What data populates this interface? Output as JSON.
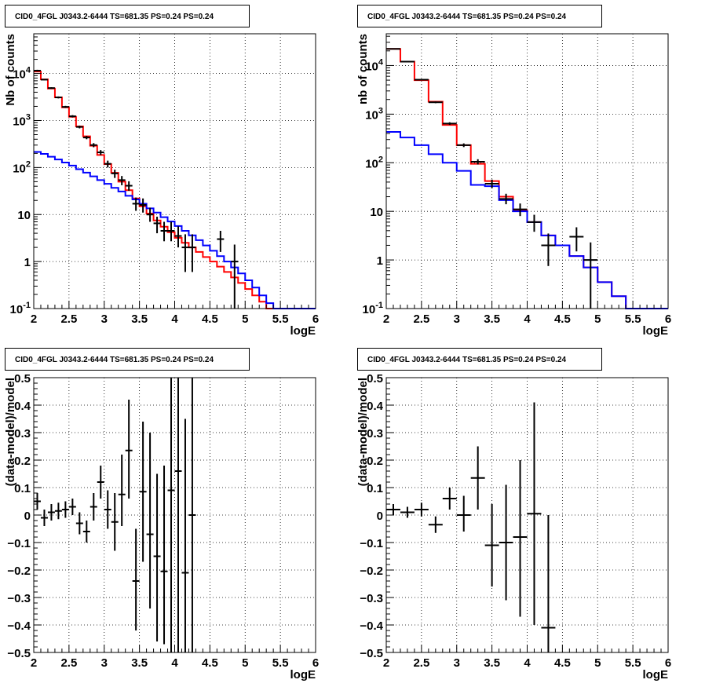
{
  "chart_data": [
    {
      "id": "counts-left",
      "type": "line",
      "title": "CID0_4FGL J0343.2-6444 TS=681.35 PS=0.24 PS=0.24",
      "xlabel": "logE",
      "ylabel": "Nb of counts",
      "xlim": [
        2,
        6
      ],
      "ylim": [
        0.1,
        70000
      ],
      "yscale": "log",
      "grid": true,
      "x_ticks": [
        "2",
        "2.5",
        "3",
        "3.5",
        "4",
        "4.5",
        "5",
        "5.5",
        "6"
      ],
      "y_ticks": [
        {
          "v": 0.1,
          "label": "10^-1"
        },
        {
          "v": 1,
          "label": "1"
        },
        {
          "v": 10,
          "label": "10"
        },
        {
          "v": 100,
          "label": "10^2"
        },
        {
          "v": 1000,
          "label": "10^3"
        },
        {
          "v": 10000,
          "label": "10^4"
        }
      ],
      "bin_edges": [
        2.0,
        2.1,
        2.2,
        2.3,
        2.4,
        2.5,
        2.6,
        2.7,
        2.8,
        2.9,
        3.0,
        3.1,
        3.2,
        3.3,
        3.4,
        3.5,
        3.6,
        3.7,
        3.8,
        3.9,
        4.0,
        4.1,
        4.2,
        4.3,
        4.4,
        4.5,
        4.6,
        4.7,
        4.8,
        4.9,
        5.0,
        5.1,
        5.2,
        5.3,
        5.4,
        5.5,
        5.6,
        5.7,
        5.8,
        5.9,
        6.0
      ],
      "series": [
        {
          "color": "#ff0000",
          "values": [
            11000,
            7500,
            4800,
            3100,
            1900,
            1200,
            750,
            460,
            290,
            185,
            118,
            77,
            50,
            33,
            22,
            15,
            10.5,
            7.5,
            5.5,
            4.2,
            3.2,
            2.5,
            2.0,
            1.6,
            1.25,
            1.0,
            0.78,
            0.6,
            0.46,
            0.35,
            0.26,
            0.19,
            0.14,
            0.1,
            0.1,
            0.1,
            0.1,
            0.1,
            0.1,
            0.1
          ]
        },
        {
          "color": "#0000ff",
          "values": [
            215,
            195,
            170,
            148,
            128,
            110,
            92,
            78,
            65,
            54,
            45,
            37,
            31,
            25,
            21,
            17,
            13.5,
            11,
            8.8,
            7.1,
            5.7,
            4.5,
            3.6,
            2.85,
            2.2,
            1.7,
            1.3,
            1.0,
            0.75,
            0.56,
            0.4,
            0.28,
            0.19,
            0.13,
            0.1,
            0.1,
            0.1,
            0.1,
            0.1,
            0.1
          ]
        }
      ],
      "points": [
        {
          "x": 2.05,
          "y": 11500,
          "lo": 11000,
          "hi": 12000
        },
        {
          "x": 2.15,
          "y": 7400,
          "lo": 7200,
          "hi": 7600
        },
        {
          "x": 2.25,
          "y": 4900,
          "lo": 4700,
          "hi": 5100
        },
        {
          "x": 2.35,
          "y": 3100,
          "lo": 2950,
          "hi": 3250
        },
        {
          "x": 2.45,
          "y": 1950,
          "lo": 1850,
          "hi": 2050
        },
        {
          "x": 2.55,
          "y": 1230,
          "lo": 1160,
          "hi": 1300
        },
        {
          "x": 2.65,
          "y": 730,
          "lo": 680,
          "hi": 780
        },
        {
          "x": 2.75,
          "y": 435,
          "lo": 400,
          "hi": 470
        },
        {
          "x": 2.85,
          "y": 300,
          "lo": 270,
          "hi": 330
        },
        {
          "x": 2.95,
          "y": 210,
          "lo": 185,
          "hi": 235
        },
        {
          "x": 3.05,
          "y": 120,
          "lo": 100,
          "hi": 140
        },
        {
          "x": 3.15,
          "y": 75,
          "lo": 60,
          "hi": 90
        },
        {
          "x": 3.25,
          "y": 54,
          "lo": 42,
          "hi": 66
        },
        {
          "x": 3.35,
          "y": 41,
          "lo": 32,
          "hi": 51
        },
        {
          "x": 3.45,
          "y": 17,
          "lo": 12,
          "hi": 23
        },
        {
          "x": 3.55,
          "y": 16,
          "lo": 11,
          "hi": 22
        },
        {
          "x": 3.65,
          "y": 10,
          "lo": 7,
          "hi": 14
        },
        {
          "x": 3.75,
          "y": 6.5,
          "lo": 4,
          "hi": 9
        },
        {
          "x": 3.85,
          "y": 4.5,
          "lo": 2.7,
          "hi": 7
        },
        {
          "x": 3.95,
          "y": 4.5,
          "lo": 2.7,
          "hi": 7
        },
        {
          "x": 4.05,
          "y": 3.5,
          "lo": 2,
          "hi": 5.6
        },
        {
          "x": 4.15,
          "y": 2,
          "lo": 0.6,
          "hi": 3.8
        },
        {
          "x": 4.25,
          "y": 2,
          "lo": 0.6,
          "hi": 3.8
        },
        {
          "x": 4.65,
          "y": 3,
          "lo": 1.6,
          "hi": 4.5
        },
        {
          "x": 4.85,
          "y": 1,
          "lo": 0.1,
          "hi": 2.3
        }
      ]
    },
    {
      "id": "counts-right",
      "type": "line",
      "title": "CID0_4FGL J0343.2-6444 TS=681.35 PS=0.24 PS=0.24",
      "xlabel": "logE",
      "ylabel": "nb of counts",
      "xlim": [
        2,
        6
      ],
      "ylim": [
        0.1,
        45000
      ],
      "yscale": "log",
      "grid": true,
      "x_ticks": [
        "2",
        "2.5",
        "3",
        "3.5",
        "4",
        "4.5",
        "5",
        "5.5",
        "6"
      ],
      "y_ticks": [
        {
          "v": 0.1,
          "label": "10^-1"
        },
        {
          "v": 1,
          "label": "1"
        },
        {
          "v": 10,
          "label": "10"
        },
        {
          "v": 100,
          "label": "10^2"
        },
        {
          "v": 1000,
          "label": "10^3"
        },
        {
          "v": 10000,
          "label": "10^4"
        }
      ],
      "bin_edges": [
        2.0,
        2.2,
        2.4,
        2.6,
        2.8,
        3.0,
        3.2,
        3.4,
        3.6,
        3.8,
        4.0,
        4.2,
        4.4,
        4.6,
        4.8,
        5.0,
        5.2,
        5.4,
        5.6,
        5.8,
        6.0
      ],
      "series": [
        {
          "color": "#ff0000",
          "values": [
            22000,
            12000,
            5000,
            1800,
            600,
            230,
            95,
            42,
            20,
            10.5,
            6,
            3.2,
            2.0,
            1.2,
            0.7,
            0.35,
            0.18,
            0.1,
            0.1,
            0.1
          ]
        },
        {
          "color": "#0000ff",
          "values": [
            430,
            330,
            230,
            150,
            100,
            68,
            35,
            33,
            17,
            10,
            6,
            3.2,
            2.0,
            1.2,
            0.7,
            0.35,
            0.18,
            0.1,
            0.1,
            0.1
          ]
        }
      ],
      "points": [
        {
          "x": 2.1,
          "y": 22000,
          "lo": 21500,
          "hi": 22500
        },
        {
          "x": 2.3,
          "y": 12000,
          "lo": 11700,
          "hi": 12300
        },
        {
          "x": 2.5,
          "y": 5100,
          "lo": 4950,
          "hi": 5250
        },
        {
          "x": 2.7,
          "y": 1750,
          "lo": 1680,
          "hi": 1820
        },
        {
          "x": 2.9,
          "y": 640,
          "lo": 600,
          "hi": 680
        },
        {
          "x": 3.1,
          "y": 230,
          "lo": 210,
          "hi": 250
        },
        {
          "x": 3.3,
          "y": 105,
          "lo": 92,
          "hi": 118
        },
        {
          "x": 3.5,
          "y": 37,
          "lo": 30,
          "hi": 45
        },
        {
          "x": 3.7,
          "y": 18,
          "lo": 14,
          "hi": 23
        },
        {
          "x": 3.9,
          "y": 11,
          "lo": 8,
          "hi": 14.5
        },
        {
          "x": 4.1,
          "y": 6,
          "lo": 3.8,
          "hi": 8.5
        },
        {
          "x": 4.3,
          "y": 2,
          "lo": 0.75,
          "hi": 3.5
        },
        {
          "x": 4.7,
          "y": 3,
          "lo": 1.5,
          "hi": 4.7
        },
        {
          "x": 4.9,
          "y": 1,
          "lo": 0.1,
          "hi": 2.3
        }
      ]
    },
    {
      "id": "resid-left",
      "type": "scatter",
      "title": "CID0_4FGL J0343.2-6444 TS=681.35 PS=0.24 PS=0.24",
      "xlabel": "logE",
      "ylabel": "(data-model)/model",
      "xlim": [
        2,
        6
      ],
      "ylim": [
        -0.5,
        0.5
      ],
      "yscale": "linear",
      "grid": true,
      "x_ticks": [
        "2",
        "2.5",
        "3",
        "3.5",
        "4",
        "4.5",
        "5",
        "5.5",
        "6"
      ],
      "y_ticks": [
        {
          "v": -0.5,
          "label": "−0.5"
        },
        {
          "v": -0.4,
          "label": "−0.4"
        },
        {
          "v": -0.3,
          "label": "−0.3"
        },
        {
          "v": -0.2,
          "label": "−0.2"
        },
        {
          "v": -0.1,
          "label": "−0.1"
        },
        {
          "v": 0,
          "label": "0"
        },
        {
          "v": 0.1,
          "label": "0.1"
        },
        {
          "v": 0.2,
          "label": "0.2"
        },
        {
          "v": 0.3,
          "label": "0.3"
        },
        {
          "v": 0.4,
          "label": "0.4"
        },
        {
          "v": 0.5,
          "label": "0.5"
        }
      ],
      "points": [
        {
          "x": 2.05,
          "y": 0.05,
          "lo": 0.02,
          "hi": 0.08
        },
        {
          "x": 2.15,
          "y": -0.01,
          "lo": -0.04,
          "hi": 0.02
        },
        {
          "x": 2.25,
          "y": 0.01,
          "lo": -0.02,
          "hi": 0.04
        },
        {
          "x": 2.35,
          "y": 0.015,
          "lo": -0.015,
          "hi": 0.045
        },
        {
          "x": 2.45,
          "y": 0.02,
          "lo": -0.01,
          "hi": 0.05
        },
        {
          "x": 2.55,
          "y": 0.03,
          "lo": 0.0,
          "hi": 0.06
        },
        {
          "x": 2.65,
          "y": -0.03,
          "lo": -0.07,
          "hi": 0.01
        },
        {
          "x": 2.75,
          "y": -0.06,
          "lo": -0.1,
          "hi": -0.02
        },
        {
          "x": 2.85,
          "y": 0.03,
          "lo": -0.02,
          "hi": 0.08
        },
        {
          "x": 2.95,
          "y": 0.12,
          "lo": 0.06,
          "hi": 0.18
        },
        {
          "x": 3.05,
          "y": 0.02,
          "lo": -0.05,
          "hi": 0.09
        },
        {
          "x": 3.15,
          "y": -0.025,
          "lo": -0.13,
          "hi": 0.08
        },
        {
          "x": 3.25,
          "y": 0.075,
          "lo": -0.04,
          "hi": 0.22
        },
        {
          "x": 3.35,
          "y": 0.235,
          "lo": 0.06,
          "hi": 0.42
        },
        {
          "x": 3.45,
          "y": -0.24,
          "lo": -0.42,
          "hi": -0.05
        },
        {
          "x": 3.55,
          "y": 0.085,
          "lo": -0.17,
          "hi": 0.34
        },
        {
          "x": 3.65,
          "y": -0.07,
          "lo": -0.34,
          "hi": 0.3
        },
        {
          "x": 3.75,
          "y": -0.15,
          "lo": -0.46,
          "hi": 0.15
        },
        {
          "x": 3.85,
          "y": -0.205,
          "lo": -0.47,
          "hi": 0.18
        },
        {
          "x": 3.95,
          "y": 0.09,
          "lo": -0.5,
          "hi": 0.5
        },
        {
          "x": 4.05,
          "y": 0.16,
          "lo": -0.5,
          "hi": 0.5
        },
        {
          "x": 4.15,
          "y": -0.21,
          "lo": -0.5,
          "hi": 0.35
        },
        {
          "x": 4.25,
          "y": 0.0,
          "lo": -0.5,
          "hi": 0.5
        }
      ]
    },
    {
      "id": "resid-right",
      "type": "scatter",
      "title": "CID0_4FGL J0343.2-6444 TS=681.35 PS=0.24 PS=0.24",
      "xlabel": "logE",
      "ylabel": "(data-model)/model",
      "xlim": [
        2,
        6
      ],
      "ylim": [
        -0.5,
        0.5
      ],
      "yscale": "linear",
      "grid": true,
      "x_ticks": [
        "2",
        "2.5",
        "3",
        "3.5",
        "4",
        "4.5",
        "5",
        "5.5",
        "6"
      ],
      "y_ticks": [
        {
          "v": -0.5,
          "label": "−0.5"
        },
        {
          "v": -0.4,
          "label": "−0.4"
        },
        {
          "v": -0.3,
          "label": "−0.3"
        },
        {
          "v": -0.2,
          "label": "−0.2"
        },
        {
          "v": -0.1,
          "label": "−0.1"
        },
        {
          "v": 0,
          "label": "0"
        },
        {
          "v": 0.1,
          "label": "0.1"
        },
        {
          "v": 0.2,
          "label": "0.2"
        },
        {
          "v": 0.3,
          "label": "0.3"
        },
        {
          "v": 0.4,
          "label": "0.4"
        },
        {
          "v": 0.5,
          "label": "0.5"
        }
      ],
      "points": [
        {
          "x": 2.1,
          "y": 0.02,
          "lo": 0.0,
          "hi": 0.04
        },
        {
          "x": 2.3,
          "y": 0.01,
          "lo": -0.01,
          "hi": 0.03
        },
        {
          "x": 2.5,
          "y": 0.02,
          "lo": -0.005,
          "hi": 0.045
        },
        {
          "x": 2.7,
          "y": -0.035,
          "lo": -0.065,
          "hi": -0.005
        },
        {
          "x": 2.9,
          "y": 0.06,
          "lo": 0.02,
          "hi": 0.1
        },
        {
          "x": 3.1,
          "y": 0.0,
          "lo": -0.06,
          "hi": 0.07
        },
        {
          "x": 3.3,
          "y": 0.135,
          "lo": 0.02,
          "hi": 0.25
        },
        {
          "x": 3.5,
          "y": -0.11,
          "lo": -0.26,
          "hi": 0.04
        },
        {
          "x": 3.7,
          "y": -0.1,
          "lo": -0.31,
          "hi": 0.11
        },
        {
          "x": 3.9,
          "y": -0.08,
          "lo": -0.37,
          "hi": 0.2
        },
        {
          "x": 4.1,
          "y": 0.005,
          "lo": -0.4,
          "hi": 0.41
        },
        {
          "x": 4.3,
          "y": -0.41,
          "lo": -0.5,
          "hi": 0.0
        }
      ]
    }
  ]
}
